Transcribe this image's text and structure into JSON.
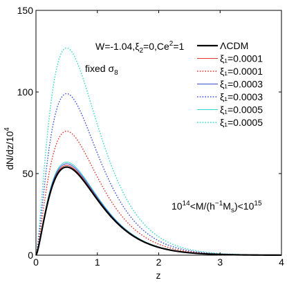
{
  "chart_data": {
    "type": "line",
    "xlabel": "z",
    "ylabel": "dN/dz/10^4",
    "xlim": [
      0,
      4
    ],
    "ylim": [
      0,
      150
    ],
    "xticks": [
      0,
      1,
      2,
      3,
      4
    ],
    "yticks": [
      0,
      50,
      100,
      150
    ],
    "xtick_labels": [
      "0",
      "1",
      "2",
      "3",
      "4"
    ],
    "ytick_labels": [
      "0",
      "50",
      "100",
      "150"
    ],
    "grid": false,
    "legend_position": "top-right",
    "annotations": {
      "params": "W=-1.04,ξ₂=0,Ce²=1",
      "fixed": "fixed σ₈",
      "mass_range": "10¹⁴<M/(h⁻¹Mₛ)<10¹⁵"
    },
    "series": [
      {
        "name": "ΛCDM",
        "color": "#000000",
        "dash": "solid",
        "width": 2.2,
        "peak_z": 0.5,
        "peak": 54
      },
      {
        "name": "ξ₁=0.0001",
        "color": "#e0302a",
        "dash": "solid",
        "width": 1,
        "peak_z": 0.5,
        "peak": 55
      },
      {
        "name": "ξ₁=0.0001",
        "color": "#e0302a",
        "dash": "dotted",
        "width": 1.4,
        "peak_z": 0.5,
        "peak": 76
      },
      {
        "name": "ξ₁=0.0003",
        "color": "#3a4fd6",
        "dash": "solid",
        "width": 1,
        "peak_z": 0.5,
        "peak": 56
      },
      {
        "name": "ξ₁=0.0003",
        "color": "#3a4fd6",
        "dash": "dotted",
        "width": 1.4,
        "peak_z": 0.5,
        "peak": 99
      },
      {
        "name": "ξ₁=0.0005",
        "color": "#35d6c9",
        "dash": "solid",
        "width": 1,
        "peak_z": 0.5,
        "peak": 57
      },
      {
        "name": "ξ₁=0.0005",
        "color": "#35d6c9",
        "dash": "dotted",
        "width": 1.4,
        "peak_z": 0.5,
        "peak": 127
      }
    ]
  }
}
